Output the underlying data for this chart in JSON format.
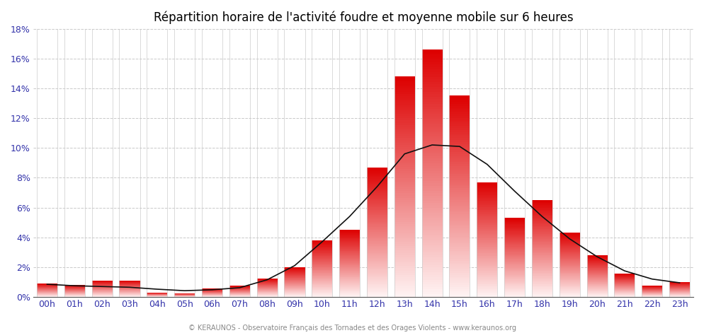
{
  "title": "Répartition horaire de l'activité foudre et moyenne mobile sur 6 heures",
  "footer": "© KERAUNOS - Observatoire Français des Tornades et des Orages Violents - www.keraunos.org",
  "hours": [
    "00h",
    "01h",
    "02h",
    "03h",
    "04h",
    "05h",
    "06h",
    "07h",
    "08h",
    "09h",
    "10h",
    "11h",
    "12h",
    "13h",
    "14h",
    "15h",
    "16h",
    "17h",
    "18h",
    "19h",
    "20h",
    "21h",
    "22h",
    "23h"
  ],
  "values": [
    0.009,
    0.008,
    0.011,
    0.011,
    0.003,
    0.0025,
    0.0055,
    0.0075,
    0.0125,
    0.02,
    0.038,
    0.045,
    0.087,
    0.148,
    0.166,
    0.135,
    0.077,
    0.053,
    0.065,
    0.043,
    0.028,
    0.0155,
    0.0075,
    0.01
  ],
  "moving_avg": [
    0.0085,
    0.0075,
    0.007,
    0.0065,
    0.0052,
    0.0042,
    0.0048,
    0.0062,
    0.0115,
    0.021,
    0.037,
    0.054,
    0.074,
    0.096,
    0.102,
    0.101,
    0.089,
    0.071,
    0.054,
    0.039,
    0.027,
    0.0175,
    0.012,
    0.0095
  ],
  "ylim": [
    0,
    0.18
  ],
  "yticks": [
    0.0,
    0.02,
    0.04,
    0.06,
    0.08,
    0.1,
    0.12,
    0.14,
    0.16,
    0.18
  ],
  "background_color": "#ffffff",
  "bar_top_color": "#dd0000",
  "bar_bottom_color": "#fff5f5",
  "bar_separator_color": "#cccccc",
  "line_color": "#111111",
  "grid_color": "#bbbbbb",
  "title_color": "#000000",
  "footer_color": "#888888",
  "tick_color": "#3333aa",
  "bar_width": 0.75,
  "num_gradient_steps": 100
}
